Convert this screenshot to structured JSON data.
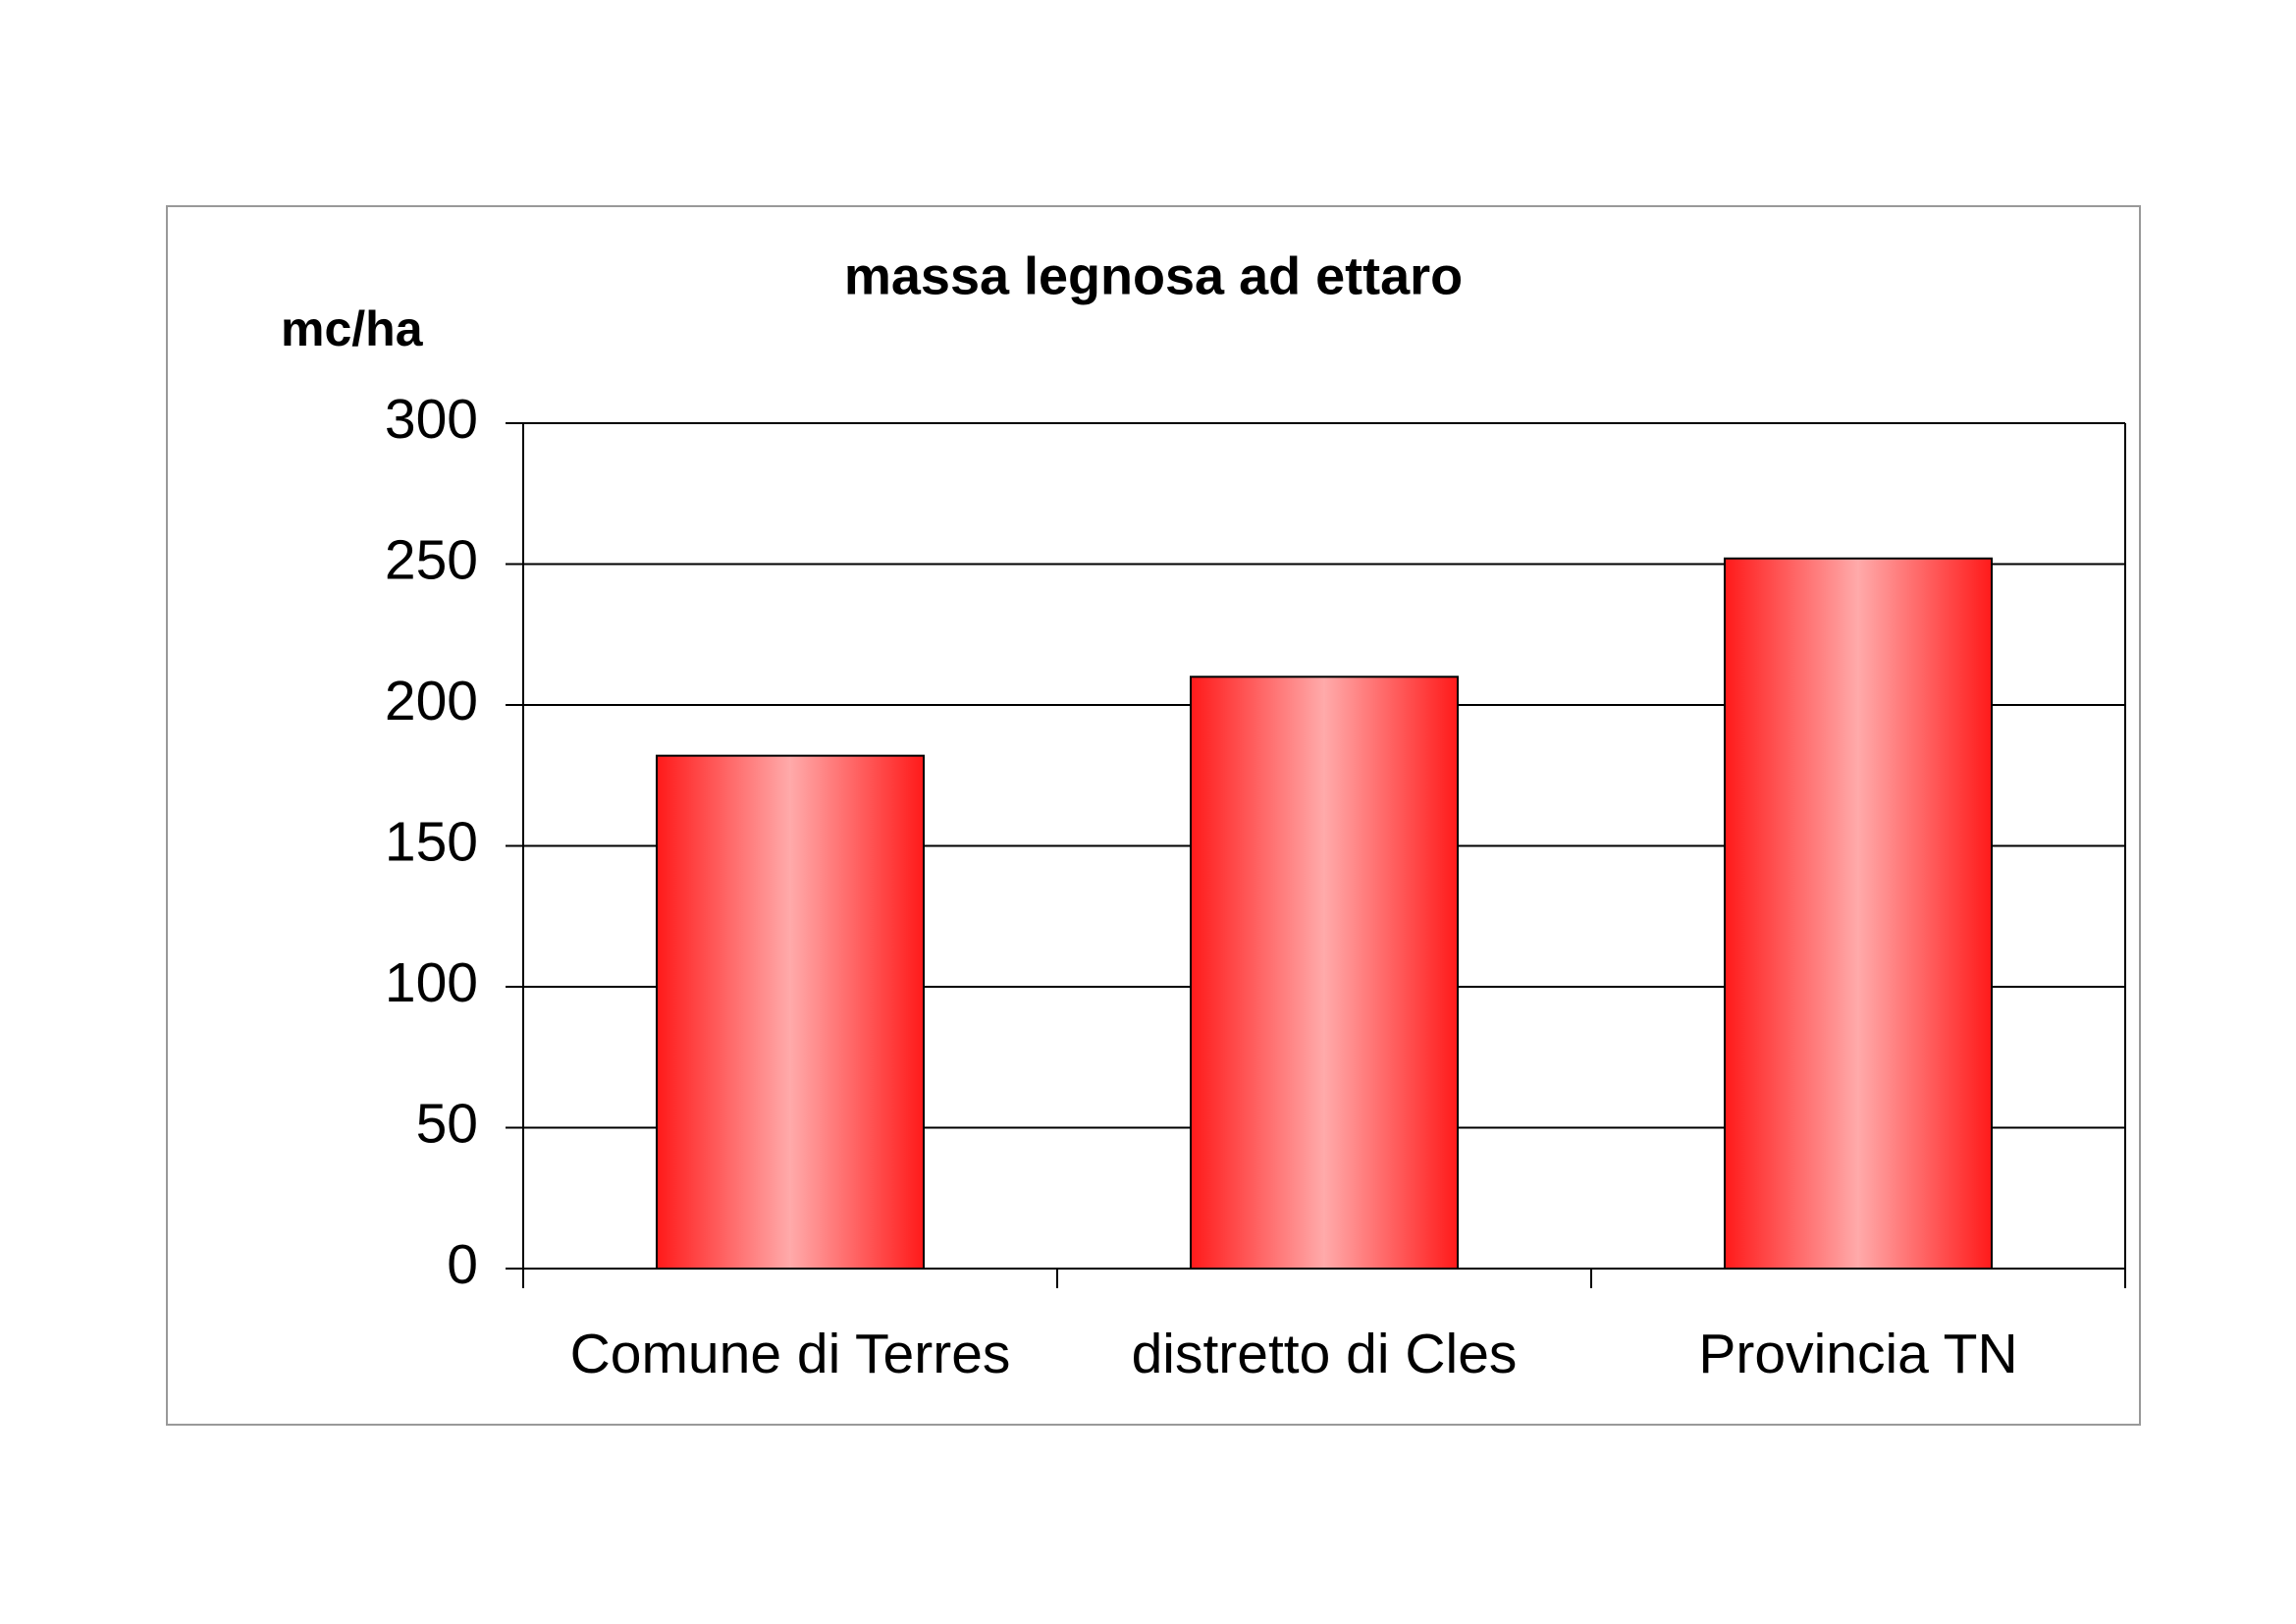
{
  "chart_data": {
    "type": "bar",
    "title": "massa legnosa ad ettaro",
    "y_label": "mc/ha",
    "categories": [
      "Comune di Terres",
      "distretto di Cles",
      "Provincia TN"
    ],
    "values": [
      182,
      210,
      252
    ],
    "color": "#ff1a1a",
    "ylim": [
      0,
      300
    ],
    "yticks": [
      0,
      50,
      100,
      150,
      200,
      250,
      300
    ],
    "grid": true
  }
}
